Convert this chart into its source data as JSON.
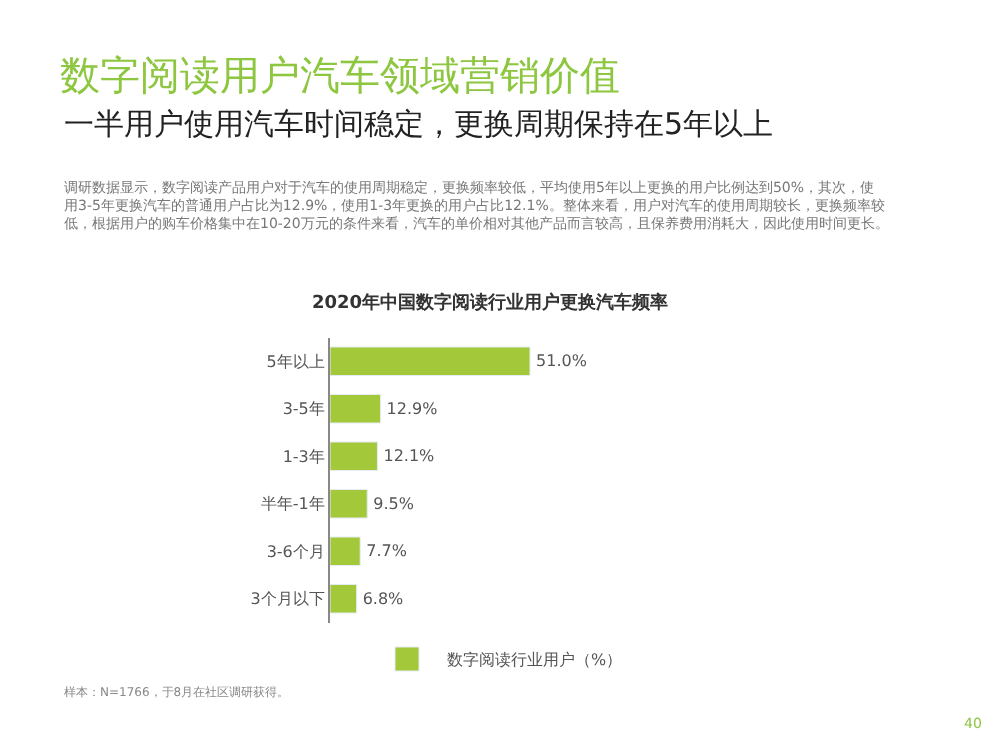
{
  "chart_data": {
    "type": "bar",
    "orientation": "horizontal",
    "title": "数字阅读用户汽车领域营销价值",
    "subtitle": "一半用户使用汽车时间稳定，更换周期保持在5年以上",
    "annotations": [
      "调研数据显示，数字阅读产品用户对于汽车的使用周期稳定，更换频率较低，平均使用5年以上更换的用户比例达到50%，其次，使用3-5年更换汽车的普通用户占比为12.9%，使用1-3年更换的用户占比12.1%。整体来看，用户对汽车的使用周期较长，更换频率较低，根据用户的购车价格集中在10-20万元的条件来看，汽车的单价相对其他产品而言较高，且保养费用消耗大，因此使用时间更长。",
      "2020年中国数字阅读行业用户更换汽车频率",
      "样本：N=1766，于8月在社区调研获得。",
      "40"
    ],
    "categories": [
      "5年以上",
      "3-5年",
      "1-3年",
      "半年-1年",
      "3-6个月",
      "3个月以下"
    ],
    "series": [
      {
        "name": "数字阅读行业用户（%）",
        "color": "#a3c93a",
        "values": [
          51.0,
          12.9,
          12.1,
          9.5,
          7.7,
          6.8
        ],
        "value_labels": [
          "51.0%",
          "12.9%",
          "12.1%",
          "9.5%",
          "7.7%",
          "6.8%"
        ]
      }
    ],
    "legend": "bottom"
  }
}
